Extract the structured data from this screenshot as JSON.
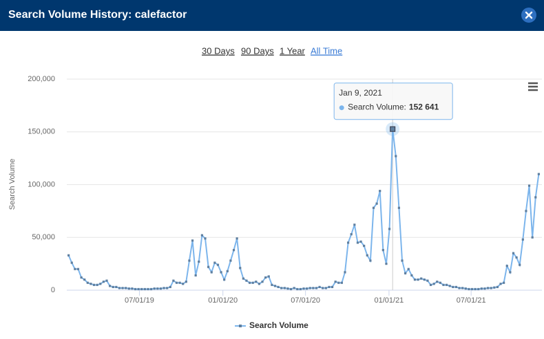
{
  "header": {
    "title": "Search Volume History: calefactor"
  },
  "ranges": [
    "30 Days",
    "90 Days",
    "1 Year",
    "All Time"
  ],
  "chart_data": {
    "type": "line",
    "y_label": "Search Volume",
    "x": [
      "2019-01-26",
      "2019-02-02",
      "2019-02-09",
      "2019-02-16",
      "2019-02-23",
      "2019-03-02",
      "2019-03-09",
      "2019-03-16",
      "2019-03-23",
      "2019-03-30",
      "2019-04-06",
      "2019-04-13",
      "2019-04-20",
      "2019-04-27",
      "2019-05-04",
      "2019-05-11",
      "2019-05-18",
      "2019-05-25",
      "2019-06-01",
      "2019-06-08",
      "2019-06-15",
      "2019-06-22",
      "2019-06-29",
      "2019-07-06",
      "2019-07-13",
      "2019-07-20",
      "2019-07-27",
      "2019-08-03",
      "2019-08-10",
      "2019-08-17",
      "2019-08-24",
      "2019-08-31",
      "2019-09-07",
      "2019-09-14",
      "2019-09-21",
      "2019-09-28",
      "2019-10-05",
      "2019-10-12",
      "2019-10-19",
      "2019-10-26",
      "2019-11-02",
      "2019-11-09",
      "2019-11-16",
      "2019-11-23",
      "2019-11-30",
      "2019-12-07",
      "2019-12-14",
      "2019-12-21",
      "2019-12-28",
      "2020-01-04",
      "2020-01-11",
      "2020-01-18",
      "2020-01-25",
      "2020-02-01",
      "2020-02-08",
      "2020-02-15",
      "2020-02-22",
      "2020-02-29",
      "2020-03-07",
      "2020-03-14",
      "2020-03-21",
      "2020-03-28",
      "2020-04-04",
      "2020-04-11",
      "2020-04-18",
      "2020-04-25",
      "2020-05-02",
      "2020-05-09",
      "2020-05-16",
      "2020-05-23",
      "2020-05-30",
      "2020-06-06",
      "2020-06-13",
      "2020-06-20",
      "2020-06-27",
      "2020-07-04",
      "2020-07-11",
      "2020-07-18",
      "2020-07-25",
      "2020-08-01",
      "2020-08-08",
      "2020-08-15",
      "2020-08-22",
      "2020-08-29",
      "2020-09-05",
      "2020-09-12",
      "2020-09-19",
      "2020-09-26",
      "2020-10-03",
      "2020-10-10",
      "2020-10-17",
      "2020-10-24",
      "2020-10-31",
      "2020-11-07",
      "2020-11-14",
      "2020-11-21",
      "2020-11-28",
      "2020-12-05",
      "2020-12-12",
      "2020-12-19",
      "2020-12-26",
      "2021-01-02",
      "2021-01-09",
      "2021-01-16",
      "2021-01-23",
      "2021-01-30",
      "2021-02-06",
      "2021-02-13",
      "2021-02-20",
      "2021-02-27",
      "2021-03-06",
      "2021-03-13",
      "2021-03-20",
      "2021-03-27",
      "2021-04-03",
      "2021-04-10",
      "2021-04-17",
      "2021-04-24",
      "2021-05-01",
      "2021-05-08",
      "2021-05-15",
      "2021-05-22",
      "2021-05-29",
      "2021-06-05",
      "2021-06-12",
      "2021-06-19",
      "2021-06-26",
      "2021-07-03",
      "2021-07-10",
      "2021-07-17",
      "2021-07-24",
      "2021-07-31",
      "2021-08-07",
      "2021-08-14",
      "2021-08-21",
      "2021-08-28",
      "2021-09-04",
      "2021-09-11",
      "2021-09-18",
      "2021-09-25",
      "2021-10-02",
      "2021-10-09",
      "2021-10-16",
      "2021-10-23",
      "2021-10-30",
      "2021-11-06",
      "2021-11-13",
      "2021-11-20",
      "2021-11-27"
    ],
    "series": [
      {
        "name": "Search Volume",
        "color": "#7cb5ec",
        "marker_color": "#5f7f9f",
        "values": [
          33000,
          26000,
          20000,
          20000,
          12000,
          10000,
          7000,
          6000,
          5000,
          5000,
          6000,
          8000,
          9000,
          4000,
          3000,
          3000,
          2000,
          2000,
          2000,
          1500,
          1500,
          1000,
          1000,
          1000,
          1000,
          1000,
          1000,
          1500,
          1500,
          1500,
          2000,
          2000,
          3000,
          9000,
          7000,
          7000,
          6000,
          8000,
          28000,
          47000,
          14000,
          27000,
          52000,
          49000,
          22000,
          17000,
          26000,
          24000,
          17000,
          10000,
          18000,
          28000,
          38000,
          49000,
          21000,
          11000,
          9000,
          7000,
          7000,
          8000,
          6000,
          8000,
          12000,
          13000,
          5000,
          4000,
          3000,
          2000,
          2000,
          1500,
          1000,
          2000,
          1000,
          1000,
          1500,
          1500,
          2000,
          2000,
          2000,
          3000,
          2000,
          2000,
          3000,
          3000,
          8000,
          7000,
          7000,
          17000,
          45000,
          53000,
          62000,
          45000,
          46000,
          42000,
          33000,
          28000,
          78000,
          82000,
          94000,
          38000,
          25000,
          58000,
          152641,
          127000,
          78000,
          28000,
          16000,
          20000,
          14000,
          10000,
          10000,
          11000,
          10000,
          9000,
          5000,
          6000,
          8000,
          7000,
          5000,
          5000,
          4000,
          3000,
          3000,
          2000,
          2000,
          1500,
          1000,
          1000,
          1000,
          1000,
          1500,
          1500,
          2000,
          2000,
          2500,
          3000,
          6000,
          7000,
          23000,
          17000,
          35000,
          31000,
          24000,
          48000,
          75000,
          99000,
          50000,
          88000,
          110000
        ]
      }
    ],
    "xlim": [
      "2019-01-22",
      "2021-12-04"
    ],
    "xticks": [
      {
        "value": "2019-07-01",
        "label": "07/01/19"
      },
      {
        "value": "2020-01-01",
        "label": "01/01/20"
      },
      {
        "value": "2020-07-01",
        "label": "07/01/20"
      },
      {
        "value": "2021-01-01",
        "label": "01/01/21"
      },
      {
        "value": "2021-07-01",
        "label": "07/01/21"
      }
    ],
    "ylim": [
      0,
      200000
    ],
    "yticks": [
      0,
      {
        "value": 50000,
        "label": "50,000"
      },
      {
        "value": 100000,
        "label": "100,000"
      },
      {
        "value": 150000,
        "label": "150,000"
      },
      {
        "value": 200000,
        "label": "200,000"
      }
    ],
    "grid": true,
    "legend": "bottom",
    "tooltip": {
      "index": 102,
      "title": "Jan 9, 2021",
      "text": "Search Volume:",
      "value": "152 641"
    }
  }
}
